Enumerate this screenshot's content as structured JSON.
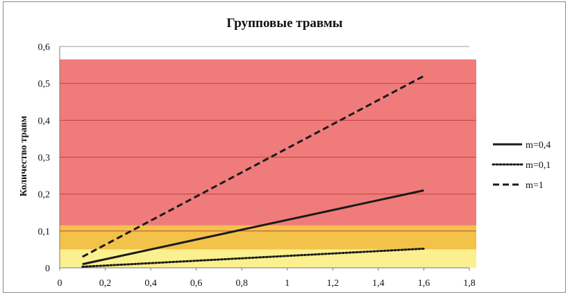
{
  "chart_data": {
    "type": "line",
    "title": "Групповые травмы",
    "xlabel": "",
    "ylabel": "Количество травм",
    "xlim": [
      0,
      1.8
    ],
    "ylim": [
      0,
      0.6
    ],
    "x_ticks": [
      "0",
      "0,2",
      "0,4",
      "0,6",
      "0,8",
      "1",
      "1,2",
      "1,4",
      "1,6",
      "1,8"
    ],
    "y_ticks": [
      "0",
      "0,1",
      "0,2",
      "0,3",
      "0,4",
      "0,5",
      "0,6"
    ],
    "grid": "horizontal",
    "legend_position": "right",
    "background_zones": [
      {
        "from": 0.0,
        "to": 0.05,
        "color": "#fbf08f"
      },
      {
        "from": 0.05,
        "to": 0.115,
        "color": "#f2c24a"
      },
      {
        "from": 0.115,
        "to": 0.565,
        "color": "#f07b7b"
      }
    ],
    "series": [
      {
        "name": "m=0,4",
        "style": "solid",
        "color": "#1a1a1a",
        "x": [
          0.1,
          1.6
        ],
        "y": [
          0.01,
          0.21
        ]
      },
      {
        "name": "m=0,1",
        "style": "dotted",
        "color": "#1a1a1a",
        "x": [
          0.1,
          1.6
        ],
        "y": [
          0.003,
          0.052
        ]
      },
      {
        "name": "m=1",
        "style": "dashed",
        "color": "#1a1a1a",
        "x": [
          0.1,
          1.6
        ],
        "y": [
          0.03,
          0.52
        ]
      }
    ]
  }
}
